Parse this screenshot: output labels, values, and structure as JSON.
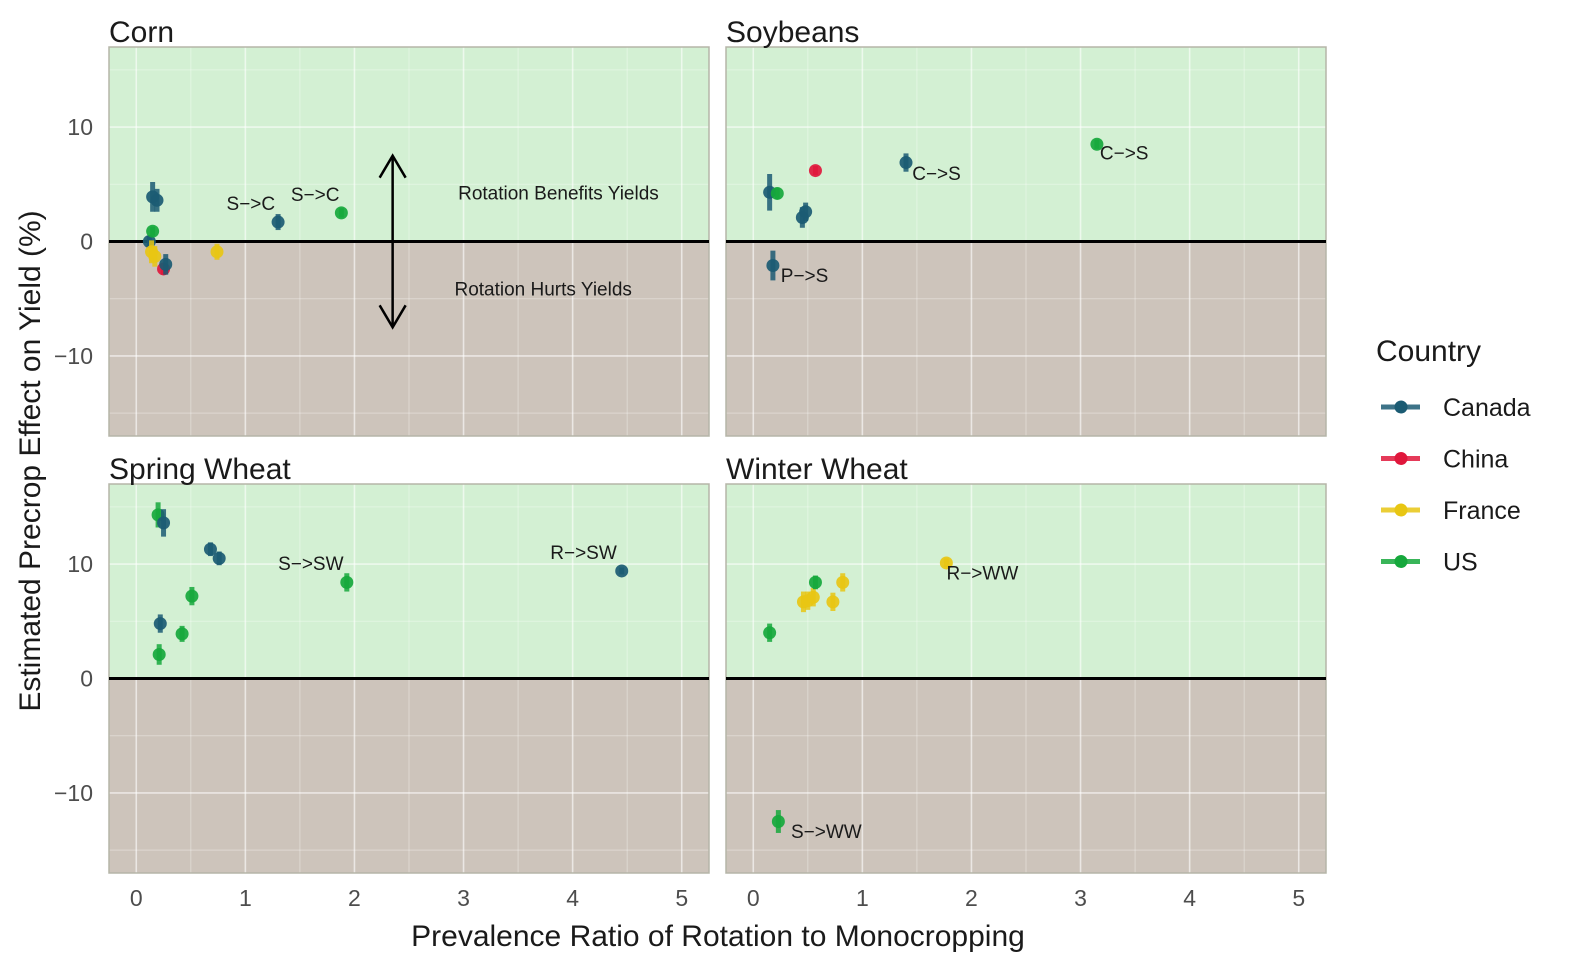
{
  "chart_data": {
    "type": "scatter",
    "xlabel": "Prevalence Ratio of Rotation to Monocropping",
    "ylabel": "Estimated Precrop Effect on Yield (%)",
    "xlim": [
      -0.25,
      5.25
    ],
    "ylim": [
      -17,
      17
    ],
    "x_ticks": [
      0,
      1,
      2,
      3,
      4,
      5
    ],
    "x_tick_labels": [
      "0",
      "1",
      "2",
      "3",
      "4",
      "5"
    ],
    "y_ticks": [
      -10,
      0,
      10
    ],
    "y_tick_labels": [
      "−10",
      "0",
      "10"
    ],
    "regions": [
      {
        "name": "benefit",
        "from": 0,
        "to": 17,
        "color": "#d3f0d3"
      },
      {
        "name": "hurt",
        "from": -17,
        "to": 0,
        "color": "#cdc4bb"
      }
    ],
    "legend": {
      "title": "Country",
      "entries": [
        {
          "name": "Canada",
          "color": "#1b5b73"
        },
        {
          "name": "China",
          "color": "#e0173c"
        },
        {
          "name": "France",
          "color": "#e8c613"
        },
        {
          "name": "US",
          "color": "#16a83c"
        }
      ]
    },
    "panels": [
      {
        "title": "Corn",
        "points": [
          {
            "country": "Canada",
            "x": 0.12,
            "y": 0.0,
            "err": 0.5
          },
          {
            "country": "US",
            "x": 0.15,
            "y": 0.9,
            "err": 0.4
          },
          {
            "country": "Canada",
            "x": 0.15,
            "y": 3.9,
            "err": 1.3
          },
          {
            "country": "Canada",
            "x": 0.19,
            "y": 3.6,
            "err": 1.0
          },
          {
            "country": "France",
            "x": 0.14,
            "y": -0.9,
            "err": 1.0
          },
          {
            "country": "France",
            "x": 0.17,
            "y": -1.3,
            "err": 0.9
          },
          {
            "country": "China",
            "x": 0.25,
            "y": -2.4,
            "err": 0.5
          },
          {
            "country": "Canada",
            "x": 0.27,
            "y": -2.0,
            "err": 0.9
          },
          {
            "country": "France",
            "x": 0.74,
            "y": -0.9,
            "err": 0.7
          },
          {
            "country": "Canada",
            "x": 1.3,
            "y": 1.7,
            "err": 0.7
          },
          {
            "country": "US",
            "x": 1.88,
            "y": 2.5,
            "err": 0.4
          }
        ],
        "labels": [
          {
            "text": "S−>C",
            "x": 1.05,
            "y": 3.2
          },
          {
            "text": "S−>C",
            "x": 1.64,
            "y": 4.0
          }
        ],
        "annotations": {
          "arrow": {
            "x": 2.35,
            "y_top": 7.5,
            "y_bottom": -7.5
          },
          "benefit_text": "Rotation Benefits Yields",
          "benefit_pos": {
            "x": 3.87,
            "y": 4.1
          },
          "hurt_text": "Rotation Hurts Yields",
          "hurt_pos": {
            "x": 3.73,
            "y": -4.3
          }
        }
      },
      {
        "title": "Soybeans",
        "points": [
          {
            "country": "Canada",
            "x": 0.15,
            "y": 4.3,
            "err": 1.6
          },
          {
            "country": "US",
            "x": 0.22,
            "y": 4.2,
            "err": 0.5
          },
          {
            "country": "Canada",
            "x": 0.18,
            "y": -2.1,
            "err": 1.3
          },
          {
            "country": "Canada",
            "x": 0.45,
            "y": 2.1,
            "err": 0.9
          },
          {
            "country": "Canada",
            "x": 0.48,
            "y": 2.6,
            "err": 0.8
          },
          {
            "country": "China",
            "x": 0.57,
            "y": 6.2,
            "err": 0.4
          },
          {
            "country": "Canada",
            "x": 1.4,
            "y": 6.9,
            "err": 0.8
          },
          {
            "country": "US",
            "x": 3.15,
            "y": 8.5,
            "err": 0.4
          }
        ],
        "labels": [
          {
            "text": "P−>S",
            "x": 0.47,
            "y": -3.1
          },
          {
            "text": "C−>S",
            "x": 1.68,
            "y": 5.8
          },
          {
            "text": "C−>S",
            "x": 3.4,
            "y": 7.6
          }
        ]
      },
      {
        "title": "Spring Wheat",
        "points": [
          {
            "country": "US",
            "x": 0.2,
            "y": 14.3,
            "err": 1.1
          },
          {
            "country": "Canada",
            "x": 0.25,
            "y": 13.6,
            "err": 1.2
          },
          {
            "country": "Canada",
            "x": 0.22,
            "y": 4.8,
            "err": 0.8
          },
          {
            "country": "US",
            "x": 0.21,
            "y": 2.1,
            "err": 0.9
          },
          {
            "country": "US",
            "x": 0.42,
            "y": 3.9,
            "err": 0.7
          },
          {
            "country": "US",
            "x": 0.51,
            "y": 7.2,
            "err": 0.8
          },
          {
            "country": "Canada",
            "x": 0.68,
            "y": 11.3,
            "err": 0.6
          },
          {
            "country": "Canada",
            "x": 0.76,
            "y": 10.5,
            "err": 0.6
          },
          {
            "country": "US",
            "x": 1.93,
            "y": 8.4,
            "err": 0.8
          },
          {
            "country": "Canada",
            "x": 4.45,
            "y": 9.4,
            "err": 0.3
          }
        ],
        "labels": [
          {
            "text": "S−>SW",
            "x": 1.6,
            "y": 9.9
          },
          {
            "text": "R−>SW",
            "x": 4.1,
            "y": 10.9
          }
        ]
      },
      {
        "title": "Winter Wheat",
        "points": [
          {
            "country": "US",
            "x": 0.15,
            "y": 4.0,
            "err": 0.8
          },
          {
            "country": "US",
            "x": 0.23,
            "y": -12.5,
            "err": 1.0
          },
          {
            "country": "France",
            "x": 0.46,
            "y": 6.7,
            "err": 0.9
          },
          {
            "country": "France",
            "x": 0.5,
            "y": 6.8,
            "err": 0.8
          },
          {
            "country": "France",
            "x": 0.55,
            "y": 7.1,
            "err": 0.8
          },
          {
            "country": "US",
            "x": 0.57,
            "y": 8.4,
            "err": 0.6
          },
          {
            "country": "France",
            "x": 0.73,
            "y": 6.7,
            "err": 0.8
          },
          {
            "country": "France",
            "x": 0.82,
            "y": 8.4,
            "err": 0.8
          },
          {
            "country": "France",
            "x": 1.77,
            "y": 10.1,
            "err": 0.4
          }
        ],
        "labels": [
          {
            "text": "S−>WW",
            "x": 0.67,
            "y": -13.5
          },
          {
            "text": "R−>WW",
            "x": 2.1,
            "y": 9.1
          }
        ]
      }
    ]
  }
}
